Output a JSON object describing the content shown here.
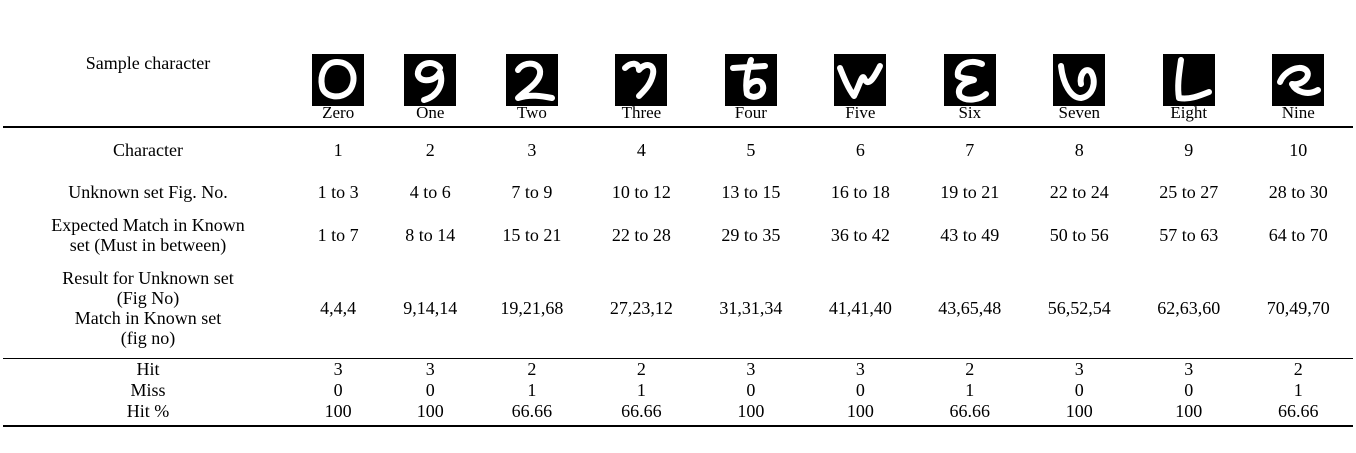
{
  "table": {
    "header": {
      "label": "Sample character",
      "samples": [
        "Zero",
        "One",
        "Two",
        "Three",
        "Four",
        "Five",
        "Six",
        "Seven",
        "Eight",
        "Nine"
      ]
    },
    "rows": [
      {
        "label": [
          "Character"
        ],
        "cells": [
          "1",
          "2",
          "3",
          "4",
          "5",
          "6",
          "7",
          "8",
          "9",
          "10"
        ]
      },
      {
        "label": [
          "Unknown set Fig. No."
        ],
        "cells": [
          "1 to 3",
          "4 to 6",
          "7 to 9",
          "10 to 12",
          "13 to 15",
          "16 to 18",
          "19 to 21",
          "22 to 24",
          "25 to 27",
          "28 to 30"
        ]
      },
      {
        "label": [
          "Expected Match in Known",
          "set (Must in between)"
        ],
        "cells": [
          "1 to 7",
          "8 to 14",
          "15 to 21",
          "22 to 28",
          "29 to 35",
          "36 to 42",
          "43 to 49",
          "50 to 56",
          "57 to 63",
          "64 to 70"
        ]
      },
      {
        "label": [
          "Result for Unknown set",
          "(Fig No)",
          "Match in Known set",
          "(fig no)"
        ],
        "cells": [
          "4,4,4",
          "9,14,14",
          "19,21,68",
          "27,23,12",
          "31,31,34",
          "41,41,40",
          "43,65,48",
          "56,52,54",
          "62,63,60",
          "70,49,70"
        ]
      }
    ],
    "summary": [
      {
        "label": [
          "Hit"
        ],
        "cells": [
          "3",
          "3",
          "2",
          "2",
          "3",
          "3",
          "2",
          "3",
          "3",
          "2"
        ]
      },
      {
        "label": [
          "Miss"
        ],
        "cells": [
          "0",
          "0",
          "1",
          "1",
          "0",
          "0",
          "1",
          "0",
          "0",
          "1"
        ]
      },
      {
        "label": [
          "Hit %"
        ],
        "cells": [
          "100",
          "100",
          "66.66",
          "66.66",
          "100",
          "100",
          "66.66",
          "100",
          "100",
          "66.66"
        ]
      }
    ]
  }
}
